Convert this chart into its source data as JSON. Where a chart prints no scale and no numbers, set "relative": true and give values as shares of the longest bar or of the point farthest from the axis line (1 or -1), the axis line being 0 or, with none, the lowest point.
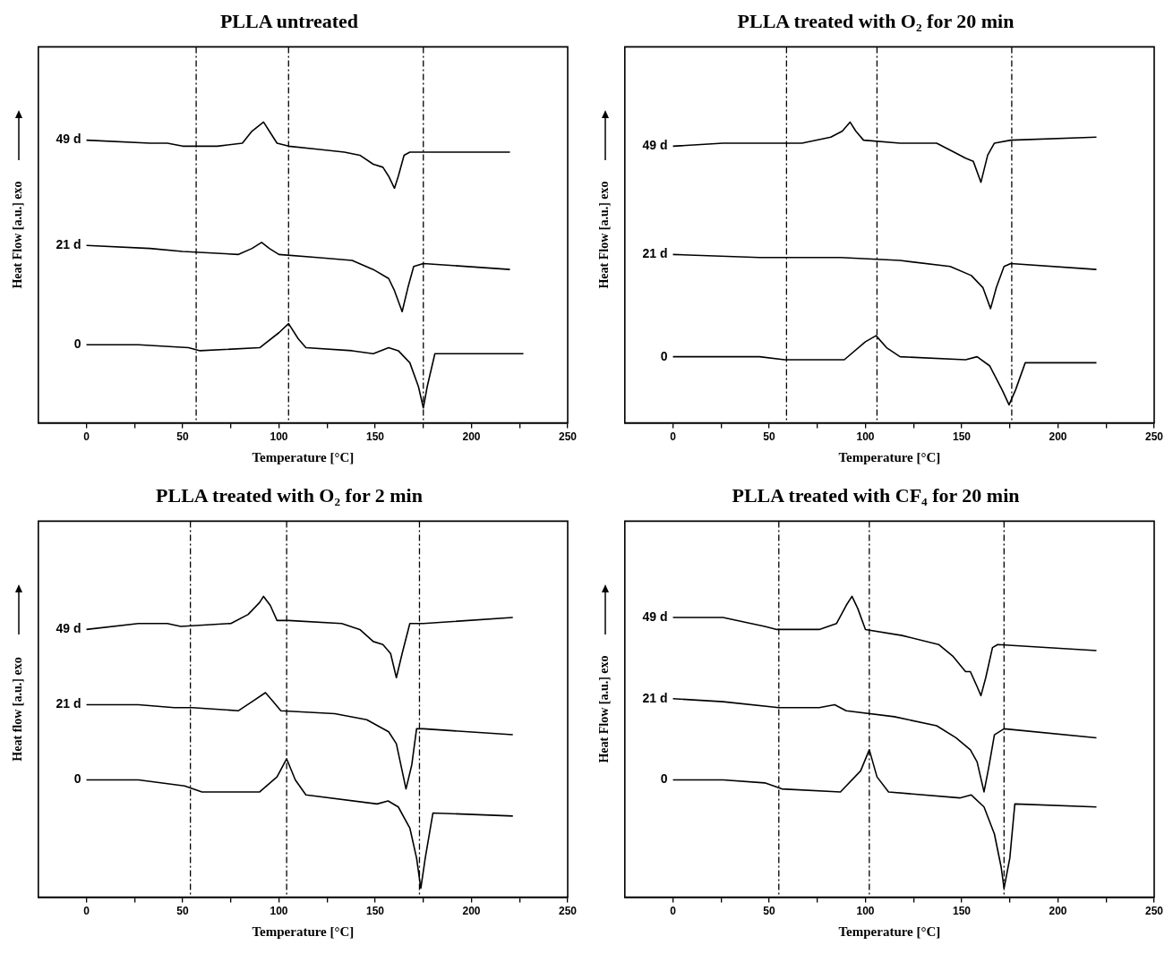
{
  "chart_data": [
    {
      "type": "line",
      "title": "PLLA untreated",
      "xlabel": "Temperature [°C]",
      "ylabel": "Heat Flow [a.u.] exo",
      "relative": true,
      "tick_labels": "x",
      "grid": false,
      "legend": false,
      "marker": "none",
      "line_style": "solid",
      "xlim": [
        -25,
        250
      ],
      "xticks": [
        0,
        {
          "value": 25,
          "label": null
        },
        50,
        {
          "value": 75,
          "label": null
        },
        100,
        {
          "value": 125,
          "label": null
        },
        150,
        {
          "value": 175,
          "label": null
        },
        200,
        {
          "value": 225,
          "label": null
        },
        250
      ],
      "series": [
        {
          "name": "49 d",
          "color": "#000000",
          "x": [
            0,
            33,
            42,
            50,
            68,
            81,
            86,
            92,
            95,
            99,
            105,
            120,
            134,
            142,
            149,
            154,
            157,
            160,
            162,
            165,
            168,
            175,
            194,
            220
          ],
          "values": [
            0.94,
            0.93,
            0.93,
            0.92,
            0.92,
            0.93,
            0.97,
            1.0,
            0.97,
            0.93,
            0.92,
            0.91,
            0.9,
            0.89,
            0.86,
            0.85,
            0.82,
            0.78,
            0.82,
            0.89,
            0.9,
            0.9,
            0.9,
            0.9
          ]
        },
        {
          "name": "21 d",
          "color": "#000000",
          "x": [
            0,
            33,
            50,
            79,
            86,
            91,
            95,
            100,
            120,
            138,
            149,
            157,
            160,
            164,
            167,
            170,
            175,
            220
          ],
          "values": [
            0.59,
            0.58,
            0.57,
            0.56,
            0.58,
            0.6,
            0.58,
            0.56,
            0.55,
            0.54,
            0.51,
            0.48,
            0.44,
            0.37,
            0.45,
            0.52,
            0.53,
            0.51
          ]
        },
        {
          "name": "0",
          "color": "#000000",
          "x": [
            0,
            27,
            53,
            59,
            90,
            100,
            105,
            110,
            114,
            138,
            149,
            157,
            162,
            168,
            172.5,
            175,
            177,
            181,
            194,
            227
          ],
          "values": [
            0.26,
            0.26,
            0.25,
            0.24,
            0.25,
            0.3,
            0.33,
            0.28,
            0.25,
            0.24,
            0.23,
            0.25,
            0.24,
            0.2,
            0.12,
            0.05,
            0.12,
            0.23,
            0.23,
            0.23
          ]
        }
      ],
      "ref_lines": [
        {
          "axis": "x",
          "value": 57,
          "color": "#000000",
          "line_style": "dashed"
        },
        {
          "axis": "x",
          "value": 105,
          "color": "#000000",
          "line_style": "dashed"
        },
        {
          "axis": "x",
          "value": 175,
          "color": "#000000",
          "line_style": "dashed"
        }
      ]
    },
    {
      "type": "line",
      "title": "PLLA treated with O₂ for 20 min",
      "xlabel": "Temperature [°C]",
      "ylabel": "Heat Flow [a.u.] exo",
      "relative": true,
      "tick_labels": "x",
      "grid": false,
      "legend": false,
      "marker": "none",
      "line_style": "solid",
      "xlim": [
        -25,
        250
      ],
      "xticks": [
        0,
        {
          "value": 25,
          "label": null
        },
        50,
        {
          "value": 75,
          "label": null
        },
        100,
        {
          "value": 125,
          "label": null
        },
        150,
        {
          "value": 175,
          "label": null
        },
        200,
        {
          "value": 225,
          "label": null
        },
        250
      ],
      "series": [
        {
          "name": "49 d",
          "color": "#000000",
          "x": [
            0,
            26,
            45,
            50,
            67,
            82,
            88,
            92,
            95,
            99,
            118,
            137,
            146,
            152,
            156,
            160,
            163.5,
            167,
            175.5,
            220
          ],
          "values": [
            0.92,
            0.93,
            0.93,
            0.93,
            0.93,
            0.95,
            0.97,
            1.0,
            0.97,
            0.94,
            0.93,
            0.93,
            0.9,
            0.88,
            0.87,
            0.8,
            0.89,
            0.93,
            0.94,
            0.95
          ]
        },
        {
          "name": "21 d",
          "color": "#000000",
          "x": [
            0,
            45,
            87,
            118,
            144,
            155,
            161,
            165,
            168,
            172,
            175.5,
            220
          ],
          "values": [
            0.56,
            0.55,
            0.55,
            0.54,
            0.52,
            0.49,
            0.45,
            0.38,
            0.45,
            0.52,
            0.53,
            0.51
          ]
        },
        {
          "name": "0",
          "color": "#000000",
          "x": [
            0,
            45,
            58,
            89,
            100,
            105.5,
            111,
            118,
            152,
            158,
            164.5,
            171,
            174.6,
            178,
            183,
            220
          ],
          "values": [
            0.22,
            0.22,
            0.21,
            0.21,
            0.27,
            0.29,
            0.25,
            0.22,
            0.21,
            0.22,
            0.19,
            0.11,
            0.06,
            0.11,
            0.2,
            0.2
          ]
        }
      ],
      "ref_lines": [
        {
          "axis": "x",
          "value": 59,
          "color": "#000000",
          "line_style": "dashed"
        },
        {
          "axis": "x",
          "value": 106,
          "color": "#000000",
          "line_style": "dashed"
        },
        {
          "axis": "x",
          "value": 176,
          "color": "#000000",
          "line_style": "dashed"
        }
      ]
    },
    {
      "type": "line",
      "title": "PLLA treated with O₂ for 2 min",
      "xlabel": "Temperature [°C]",
      "ylabel": "Heat flow [a.u.] exo",
      "relative": true,
      "tick_labels": "x",
      "grid": false,
      "legend": false,
      "marker": "none",
      "line_style": "solid",
      "xlim": [
        -25,
        250
      ],
      "xticks": [
        0,
        {
          "value": 25,
          "label": null
        },
        50,
        {
          "value": 75,
          "label": null
        },
        100,
        {
          "value": 125,
          "label": null
        },
        150,
        {
          "value": 175,
          "label": null
        },
        200,
        {
          "value": 225,
          "label": null
        },
        250
      ],
      "series": [
        {
          "name": "49 d",
          "color": "#000000",
          "x": [
            0,
            27,
            42,
            49,
            75,
            84,
            90,
            92,
            95.5,
            99,
            105,
            132.6,
            142,
            149,
            154,
            158,
            161,
            164,
            168,
            175,
            221.5
          ],
          "values": [
            0.89,
            0.91,
            0.91,
            0.9,
            0.91,
            0.94,
            0.98,
            1.0,
            0.97,
            0.92,
            0.92,
            0.91,
            0.89,
            0.85,
            0.84,
            0.81,
            0.73,
            0.81,
            0.91,
            0.91,
            0.93
          ]
        },
        {
          "name": "21 d",
          "color": "#000000",
          "x": [
            0,
            27,
            45.6,
            55,
            79,
            86,
            93,
            97,
            101,
            129,
            145.6,
            157,
            161,
            166,
            169,
            171.5,
            175,
            221.5
          ],
          "values": [
            0.64,
            0.64,
            0.63,
            0.63,
            0.62,
            0.65,
            0.68,
            0.65,
            0.62,
            0.61,
            0.59,
            0.55,
            0.51,
            0.36,
            0.44,
            0.56,
            0.56,
            0.54
          ]
        },
        {
          "name": "0",
          "color": "#000000",
          "x": [
            0,
            27,
            51,
            60,
            90,
            99,
            104,
            108.5,
            114,
            151,
            156.7,
            162,
            168,
            171.5,
            173.7,
            176,
            180,
            221.5
          ],
          "values": [
            0.39,
            0.39,
            0.37,
            0.35,
            0.35,
            0.4,
            0.46,
            0.39,
            0.34,
            0.31,
            0.32,
            0.3,
            0.23,
            0.13,
            0.03,
            0.13,
            0.28,
            0.27
          ]
        }
      ],
      "ref_lines": [
        {
          "axis": "x",
          "value": 54,
          "color": "#000000",
          "line_style": "dashed"
        },
        {
          "axis": "x",
          "value": 104,
          "color": "#000000",
          "line_style": "dashed"
        },
        {
          "axis": "x",
          "value": 173,
          "color": "#000000",
          "line_style": "dashed"
        }
      ]
    },
    {
      "type": "line",
      "title": "PLLA treated with CF₄ for 20 min",
      "xlabel": "Temperature [°C]",
      "ylabel": "Heat Flow [a.u.] exo",
      "relative": true,
      "tick_labels": "x",
      "grid": false,
      "legend": false,
      "marker": "none",
      "line_style": "solid",
      "xlim": [
        -25,
        250
      ],
      "xticks": [
        0,
        {
          "value": 25,
          "label": null
        },
        50,
        {
          "value": 75,
          "label": null
        },
        100,
        {
          "value": 125,
          "label": null
        },
        150,
        {
          "value": 175,
          "label": null
        },
        200,
        {
          "value": 225,
          "label": null
        },
        250
      ],
      "series": [
        {
          "name": "49 d",
          "color": "#000000",
          "x": [
            0,
            26,
            40.6,
            47.7,
            54,
            76,
            85,
            90,
            93,
            96,
            100,
            119,
            138,
            145.6,
            152,
            154.5,
            158,
            160,
            162.5,
            166,
            168.7,
            220
          ],
          "values": [
            0.93,
            0.93,
            0.91,
            0.9,
            0.89,
            0.89,
            0.91,
            0.97,
            1.0,
            0.96,
            0.89,
            0.87,
            0.84,
            0.8,
            0.75,
            0.75,
            0.7,
            0.67,
            0.73,
            0.83,
            0.84,
            0.82
          ]
        },
        {
          "name": "21 d",
          "color": "#000000",
          "x": [
            0,
            26,
            55,
            76,
            84,
            90,
            115,
            137,
            147,
            154.5,
            158,
            161.6,
            164,
            167,
            172,
            220
          ],
          "values": [
            0.66,
            0.65,
            0.63,
            0.63,
            0.64,
            0.62,
            0.6,
            0.57,
            0.53,
            0.49,
            0.45,
            0.35,
            0.43,
            0.54,
            0.56,
            0.53
          ]
        },
        {
          "name": "0",
          "color": "#000000",
          "x": [
            0,
            26,
            47.7,
            56.6,
            87,
            97.5,
            102,
            106,
            112,
            149,
            155,
            161.6,
            167,
            170.5,
            172,
            175,
            177.6,
            220
          ],
          "values": [
            0.39,
            0.39,
            0.38,
            0.36,
            0.35,
            0.42,
            0.49,
            0.4,
            0.35,
            0.33,
            0.34,
            0.3,
            0.21,
            0.1,
            0.03,
            0.13,
            0.31,
            0.3
          ]
        }
      ],
      "ref_lines": [
        {
          "axis": "x",
          "value": 55,
          "color": "#000000",
          "line_style": "dashed"
        },
        {
          "axis": "x",
          "value": 102,
          "color": "#000000",
          "line_style": "dashed"
        },
        {
          "axis": "x",
          "value": 172,
          "color": "#000000",
          "line_style": "dashed"
        }
      ]
    }
  ]
}
